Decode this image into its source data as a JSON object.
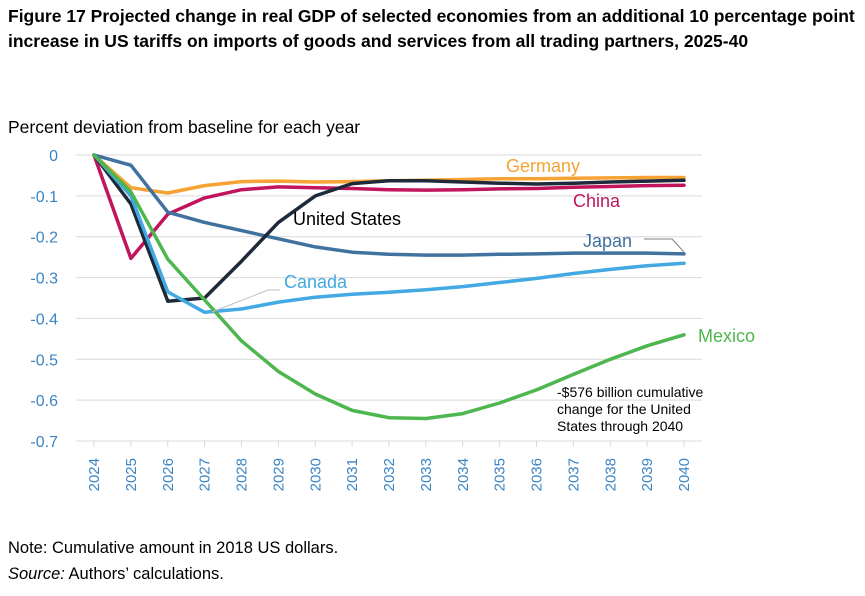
{
  "figure": {
    "title": "Figure 17 Projected change in real GDP of selected economies from an additional 10 percentage point increase in US tariffs on imports of goods and services from all trading partners, 2025-40",
    "note": "Note: Cumulative amount in 2018 US dollars.",
    "source_label": "Source:",
    "source_text": " Authors’ calculations."
  },
  "chart_data": {
    "type": "line",
    "ylabel": "Percent deviation from baseline for each year",
    "xlabel": "",
    "ylim": [
      -0.7,
      0
    ],
    "yticks": [
      0,
      -0.1,
      -0.2,
      -0.3,
      -0.4,
      -0.5,
      -0.6,
      -0.7
    ],
    "ytick_labels": [
      "0",
      "-0.1",
      "-0.2",
      "-0.3",
      "-0.4",
      "-0.5",
      "-0.6",
      "-0.7"
    ],
    "x": [
      2024,
      2025,
      2026,
      2027,
      2028,
      2029,
      2030,
      2031,
      2032,
      2033,
      2034,
      2035,
      2036,
      2037,
      2038,
      2039,
      2040
    ],
    "grid": "horizontal",
    "series": [
      {
        "name": "Germany",
        "color": "#f7a233",
        "values": [
          0,
          -0.08,
          -0.093,
          -0.075,
          -0.065,
          -0.064,
          -0.066,
          -0.065,
          -0.063,
          -0.062,
          -0.06,
          -0.058,
          -0.058,
          -0.057,
          -0.056,
          -0.055,
          -0.055
        ]
      },
      {
        "name": "China",
        "color": "#c0155c",
        "values": [
          0,
          -0.253,
          -0.145,
          -0.105,
          -0.085,
          -0.078,
          -0.08,
          -0.082,
          -0.085,
          -0.086,
          -0.085,
          -0.083,
          -0.082,
          -0.079,
          -0.077,
          -0.075,
          -0.074
        ]
      },
      {
        "name": "Japan",
        "color": "#41729f",
        "values": [
          0,
          -0.025,
          -0.14,
          -0.165,
          -0.185,
          -0.205,
          -0.225,
          -0.238,
          -0.243,
          -0.245,
          -0.245,
          -0.243,
          -0.242,
          -0.24,
          -0.24,
          -0.24,
          -0.242
        ]
      },
      {
        "name": "United States",
        "color": "#1e2a3a",
        "values": [
          0,
          -0.12,
          -0.358,
          -0.35,
          -0.26,
          -0.165,
          -0.1,
          -0.07,
          -0.063,
          -0.063,
          -0.066,
          -0.069,
          -0.071,
          -0.069,
          -0.066,
          -0.064,
          -0.062
        ]
      },
      {
        "name": "Canada",
        "color": "#43a9e3",
        "values": [
          0,
          -0.1,
          -0.335,
          -0.385,
          -0.377,
          -0.36,
          -0.348,
          -0.341,
          -0.336,
          -0.33,
          -0.322,
          -0.312,
          -0.302,
          -0.29,
          -0.28,
          -0.271,
          -0.265
        ]
      },
      {
        "name": "Mexico",
        "color": "#4eb64e",
        "values": [
          0,
          -0.09,
          -0.255,
          -0.355,
          -0.455,
          -0.53,
          -0.585,
          -0.625,
          -0.643,
          -0.645,
          -0.633,
          -0.607,
          -0.575,
          -0.537,
          -0.5,
          -0.467,
          -0.44
        ]
      }
    ],
    "annotation": [
      "-$576 billion cumulative",
      "change for the United",
      "States through 2040"
    ]
  }
}
